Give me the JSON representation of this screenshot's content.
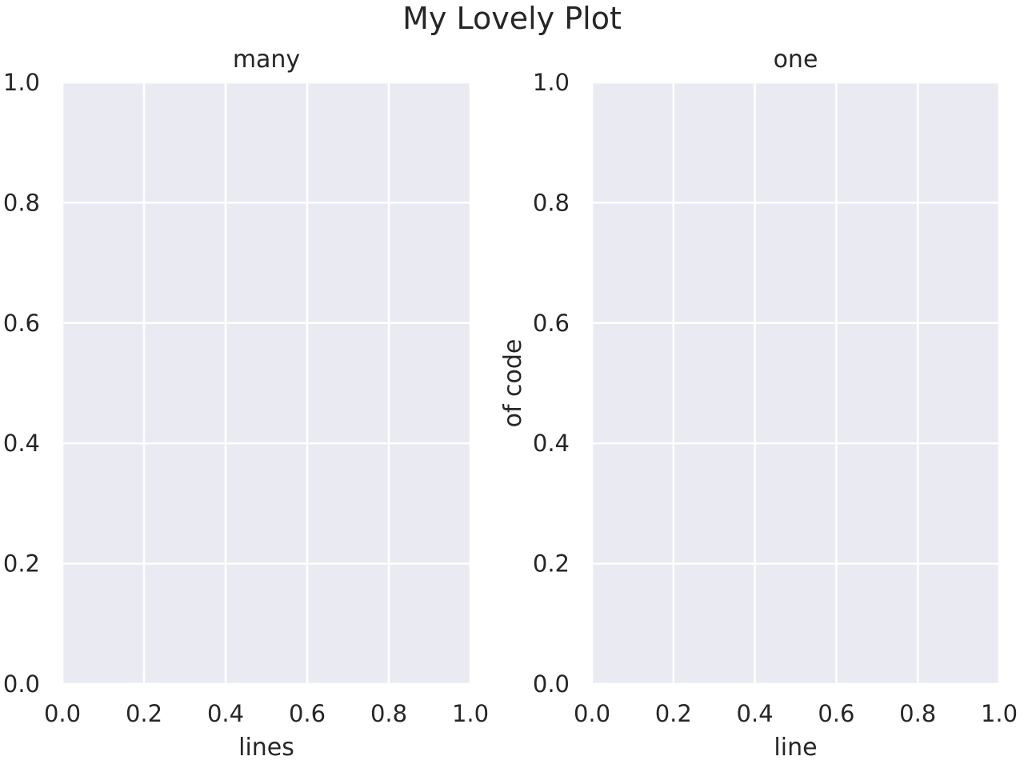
{
  "figure": {
    "suptitle": "My Lovely Plot"
  },
  "colors": {
    "axes_background": "#EAEAF2",
    "grid": "#FFFFFF",
    "text": "#262626"
  },
  "chart_data": [
    {
      "type": "line",
      "title": "many",
      "xlabel": "lines",
      "ylabel": "",
      "xlim": [
        0.0,
        1.0
      ],
      "ylim": [
        0.0,
        1.0
      ],
      "xticks": [
        "0.0",
        "0.2",
        "0.4",
        "0.6",
        "0.8",
        "1.0"
      ],
      "yticks": [
        "0.0",
        "0.2",
        "0.4",
        "0.6",
        "0.8",
        "1.0"
      ],
      "grid": true,
      "series": []
    },
    {
      "type": "line",
      "title": "one",
      "xlabel": "line",
      "ylabel": "of code",
      "xlim": [
        0.0,
        1.0
      ],
      "ylim": [
        0.0,
        1.0
      ],
      "xticks": [
        "0.0",
        "0.2",
        "0.4",
        "0.6",
        "0.8",
        "1.0"
      ],
      "yticks": [
        "0.0",
        "0.2",
        "0.4",
        "0.6",
        "0.8",
        "1.0"
      ],
      "grid": true,
      "series": []
    }
  ]
}
